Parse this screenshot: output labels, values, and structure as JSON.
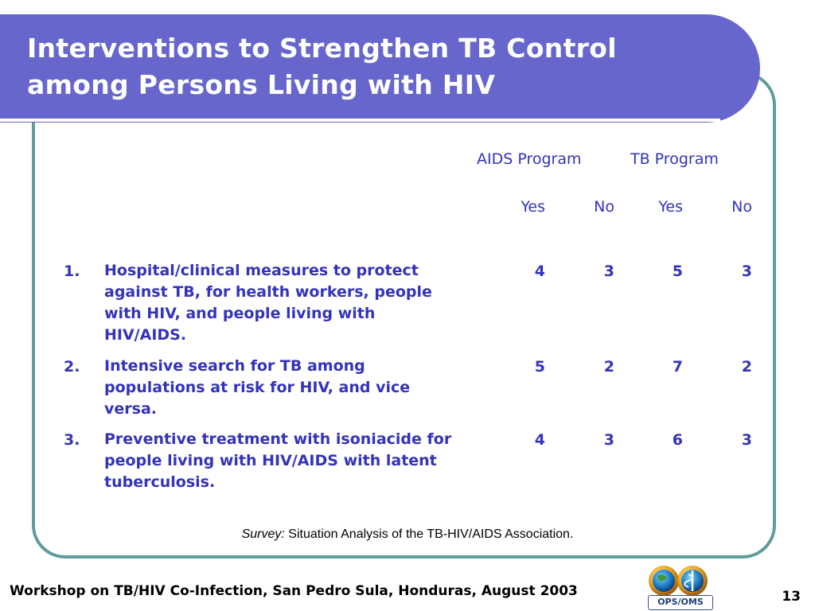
{
  "slide": {
    "title": "Interventions to Strengthen TB Control among Persons Living with HIV",
    "column_groups": [
      "AIDS Program",
      "TB Program"
    ],
    "subcolumns": [
      "Yes",
      "No",
      "Yes",
      "No"
    ],
    "rows": [
      {
        "num": "1.",
        "text": "Hospital/clinical measures to protect against TB, for health workers, people with HIV, and people living with HIV/AIDS.",
        "values": [
          "4",
          "3",
          "5",
          "3"
        ]
      },
      {
        "num": "2.",
        "text": "Intensive search for TB among populations at risk for HIV, and vice versa.",
        "values": [
          "5",
          "2",
          "7",
          "2"
        ]
      },
      {
        "num": "3.",
        "text": "Preventive treatment with isoniacide for people living with HIV/AIDS with latent tuberculosis.",
        "values": [
          "4",
          "3",
          "6",
          "3"
        ]
      }
    ],
    "source_label": "Survey:",
    "source_text": "Situation Analysis of the TB-HIV/AIDS Association."
  },
  "footer": {
    "text": "Workshop on TB/HIV Co-Infection, San Pedro Sula, Honduras, August 2003",
    "page_number": "13",
    "logo_caption": "OPS/OMS"
  },
  "colors": {
    "banner": "#6666cc",
    "frame": "#5f9c9c",
    "text": "#3333bb"
  }
}
